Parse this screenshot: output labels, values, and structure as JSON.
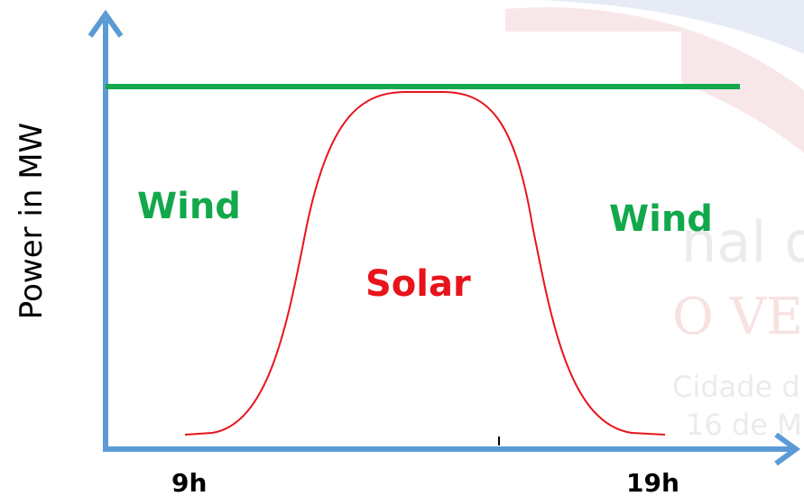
{
  "y_axis_label": "Power in MW",
  "x_labels": [
    "9h",
    "19h"
  ],
  "regions": [
    {
      "label": "Wind"
    },
    {
      "label": "Solar"
    },
    {
      "label": "Wind"
    }
  ],
  "watermark": [
    "nal d",
    "O VE",
    "Cidade d",
    "16 de M"
  ]
}
